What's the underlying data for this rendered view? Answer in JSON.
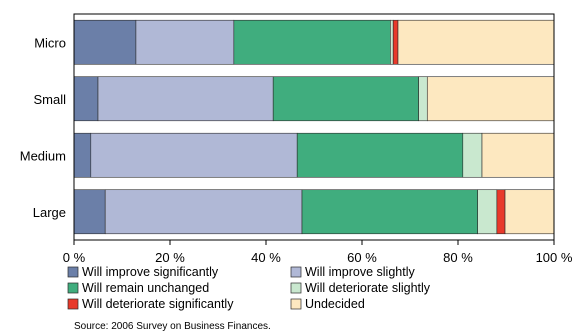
{
  "chart_data": {
    "type": "bar",
    "orientation": "horizontal",
    "stacked": true,
    "categories": [
      "Micro",
      "Small",
      "Medium",
      "Large"
    ],
    "series": [
      {
        "name": "Will improve significantly",
        "color": "#6b7fa8",
        "values": [
          12.9,
          5.0,
          3.5,
          6.5
        ]
      },
      {
        "name": "Will improve slightly",
        "color": "#b0b8d6",
        "values": [
          20.4,
          36.5,
          43.0,
          41.0
        ]
      },
      {
        "name": "Will remain unchanged",
        "color": "#40ad7e",
        "values": [
          32.6,
          30.3,
          34.5,
          36.6
        ]
      },
      {
        "name": "Will deteriorate slightly",
        "color": "#c9e8cf",
        "values": [
          0.6,
          1.8,
          4.0,
          4.0
        ]
      },
      {
        "name": "Will deteriorate significantly",
        "color": "#e8392a",
        "values": [
          1.0,
          0.0,
          0.0,
          1.7
        ]
      },
      {
        "name": "Undecided",
        "color": "#fde8c0",
        "values": [
          32.5,
          26.4,
          15.0,
          10.2
        ]
      }
    ],
    "xlim": [
      0,
      100
    ],
    "xticks": [
      "0 %",
      "20 %",
      "40 %",
      "60 %",
      "80 %",
      "100 %"
    ],
    "xtick_values": [
      0,
      20,
      40,
      60,
      80,
      100
    ],
    "grid": false,
    "legend_position": "bottom",
    "source": "Source: 2006 Survey on Business Finances."
  }
}
